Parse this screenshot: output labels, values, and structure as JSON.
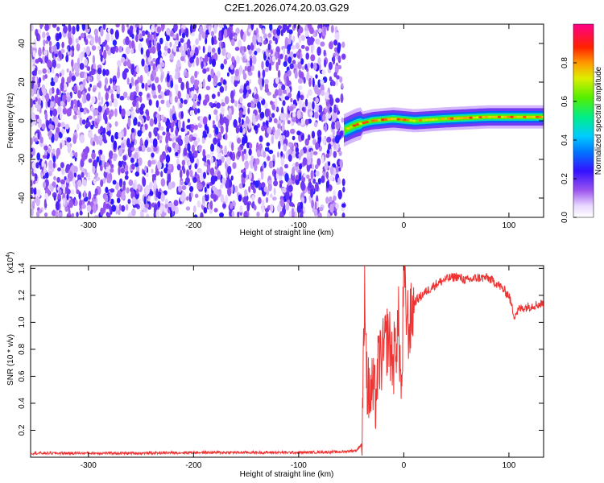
{
  "figure": {
    "title": "C2E1.2026.074.20.03.G29"
  },
  "chart_data": [
    {
      "type": "heatmap",
      "xlabel": "Height of straight line (km)",
      "ylabel": "Frequency (Hz)",
      "xlim": [
        -355,
        133
      ],
      "ylim": [
        -50,
        50
      ],
      "x_ticks": [
        -300,
        -200,
        -100,
        0,
        100
      ],
      "y_ticks": [
        -40,
        -20,
        0,
        20,
        40
      ],
      "noise_region_x": [
        -355,
        -57
      ],
      "signal_band": {
        "x_start": -57,
        "x_end": 133,
        "center_frequency_hz": [
          {
            "x": -57,
            "f": -5
          },
          {
            "x": -45,
            "f": -2
          },
          {
            "x": -30,
            "f": 0
          },
          {
            "x": -10,
            "f": 1
          },
          {
            "x": 10,
            "f": 0
          },
          {
            "x": 40,
            "f": 1
          },
          {
            "x": 80,
            "f": 2
          },
          {
            "x": 133,
            "f": 2
          }
        ]
      },
      "colorbar": {
        "label": "Normalized spectral amplitude",
        "ticks": [
          "0.0",
          "0.2",
          "0.4",
          "0.6",
          "0.8"
        ],
        "range": [
          0,
          1
        ]
      },
      "grid": false
    },
    {
      "type": "line",
      "xlabel": "Height of straight line (km)",
      "ylabel": "SNR (10 * v/v)",
      "y_scale_label": "(x10",
      "y_scale_exp": "4",
      "ylim_display": [
        0,
        1.42
      ],
      "xlim": [
        -355,
        133
      ],
      "x_ticks": [
        -300,
        -200,
        -100,
        0,
        100
      ],
      "y_ticks": [
        "0.2",
        "0.4",
        "0.6",
        "0.8",
        "1.0",
        "1.2",
        "1.4"
      ],
      "series": [
        {
          "color": "#ee3333",
          "x": [
            -355,
            -300,
            -250,
            -200,
            -150,
            -100,
            -60,
            -45,
            -40,
            -38,
            -37,
            -35,
            -33,
            -30,
            -27,
            -24,
            -20,
            -15,
            -10,
            -5,
            -2,
            0,
            2,
            5,
            10,
            20,
            30,
            40,
            50,
            60,
            70,
            80,
            90,
            100,
            105,
            110,
            120,
            133
          ],
          "values": [
            0.03,
            0.03,
            0.03,
            0.035,
            0.035,
            0.035,
            0.04,
            0.05,
            0.1,
            0.8,
            1.33,
            0.55,
            0.45,
            0.5,
            0.42,
            0.7,
            0.75,
            0.9,
            0.7,
            1.0,
            0.4,
            1.42,
            1.1,
            0.95,
            1.15,
            1.22,
            1.28,
            1.32,
            1.34,
            1.31,
            1.33,
            1.33,
            1.28,
            1.2,
            1.05,
            1.1,
            1.12,
            1.14
          ]
        }
      ],
      "grid": false
    }
  ]
}
